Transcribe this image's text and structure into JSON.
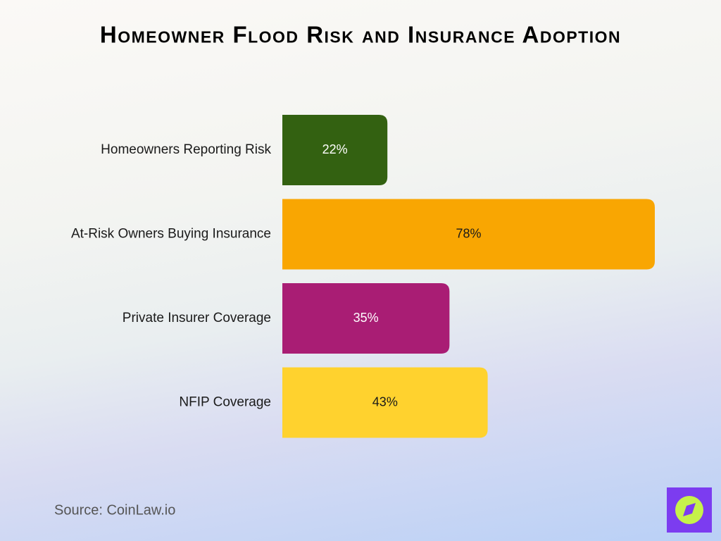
{
  "chart_data": {
    "type": "bar",
    "orientation": "horizontal",
    "title": "Homeowner Flood Risk and Insurance Adoption",
    "categories": [
      "Homeowners Reporting Risk",
      "At-Risk Owners Buying Insurance",
      "Private Insurer Coverage",
      "NFIP Coverage"
    ],
    "values": [
      22,
      78,
      35,
      43
    ],
    "value_labels": [
      "22%",
      "78%",
      "35%",
      "43%"
    ],
    "colors": [
      "#336111",
      "#f9a602",
      "#a91d74",
      "#ffd22e"
    ],
    "source": "Source: CoinLaw.io"
  }
}
